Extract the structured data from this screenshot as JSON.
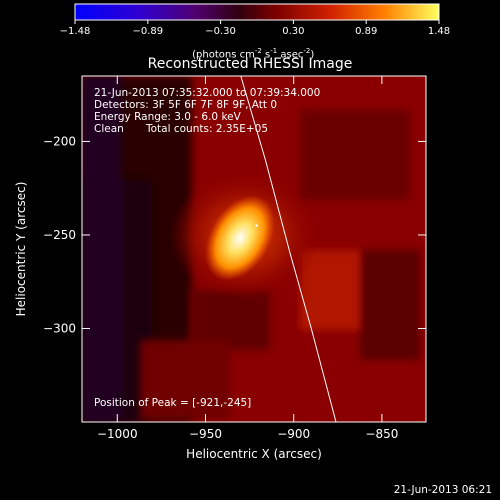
{
  "chart_data": {
    "type": "heatmap",
    "title": "Reconstructed RHESSI Image",
    "xlabel": "Heliocentric X (arcsec)",
    "ylabel": "Heliocentric Y (arcsec)",
    "xlim": [
      -1020,
      -825
    ],
    "ylim": [
      -350,
      -165
    ],
    "x_ticks": [
      -1000,
      -950,
      -900,
      -850
    ],
    "y_ticks": [
      -300,
      -250,
      -200
    ],
    "colorbar": {
      "min": -1.48,
      "max": 1.48,
      "tick_labels": [
        "-1.48",
        "-0.89",
        "-0.30",
        "0.30",
        "0.89",
        "1.48"
      ],
      "unit_parts": [
        "(photons cm",
        "-2",
        " s",
        "-1",
        " asec",
        "-2",
        ")"
      ]
    },
    "annotations": {
      "time_range": "21-Jun-2013 07:35:32.000 to 07:39:34.000",
      "detectors": "Detectors: 3F 5F 6F 7F 8F 9F, Att 0",
      "energy_range": "Energy Range: 3.0 - 6.0 keV",
      "method": "Clean",
      "total_counts": "Total counts: 2.35E+05",
      "peak_position": "Position of Peak = [-921,-245]"
    },
    "peak": {
      "x": -921,
      "y": -245
    },
    "limb_line": [
      {
        "x": -930,
        "y": -165
      },
      {
        "x": -916,
        "y": -210
      },
      {
        "x": -902,
        "y": -260
      },
      {
        "x": -890,
        "y": -300
      },
      {
        "x": -876,
        "y": -350
      }
    ],
    "plot_timestamp": "21-Jun-2013 06:21"
  },
  "colors": {
    "background": "#000000",
    "colormap": [
      "#0000ff",
      "#4000c0",
      "#000000",
      "#7a0000",
      "#d02000",
      "#ff8000",
      "#ffff40",
      "#ffffff"
    ]
  }
}
